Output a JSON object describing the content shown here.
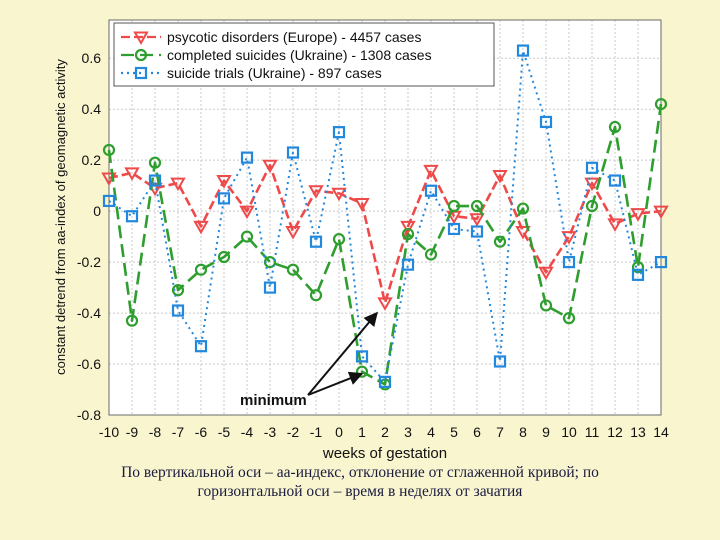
{
  "chart_data": {
    "type": "line",
    "xlabel": "weeks of gestation",
    "ylabel": "constant detrend from aa-index of geomagnetic activity",
    "x": [
      -10,
      -9,
      -8,
      -7,
      -6,
      -5,
      -4,
      -3,
      -2,
      -1,
      0,
      1,
      2,
      3,
      4,
      5,
      6,
      7,
      8,
      9,
      10,
      11,
      12,
      13,
      14
    ],
    "xlim": [
      -10,
      14
    ],
    "ylim": [
      -0.8,
      0.75
    ],
    "yticks": [
      -0.8,
      -0.6,
      -0.4,
      -0.2,
      0,
      0.2,
      0.4,
      0.6
    ],
    "grid": true,
    "legend_position": "top-left",
    "series": [
      {
        "name": "psycotic disorders (Europe) - 4457 cases",
        "color": "#ee4a4a",
        "marker": "triangle-down",
        "values": [
          0.13,
          0.15,
          0.09,
          0.11,
          -0.06,
          0.12,
          0.0,
          0.18,
          -0.08,
          0.08,
          0.07,
          0.03,
          -0.36,
          -0.06,
          0.16,
          -0.02,
          -0.03,
          0.14,
          -0.08,
          -0.24,
          -0.1,
          0.11,
          -0.05,
          -0.01,
          0.0
        ]
      },
      {
        "name": "completed suicides (Ukraine) - 1308 cases",
        "color": "#2e9e2e",
        "marker": "circle",
        "values": [
          0.24,
          -0.43,
          0.19,
          -0.31,
          -0.23,
          -0.18,
          -0.1,
          -0.2,
          -0.23,
          -0.33,
          -0.11,
          -0.63,
          -0.68,
          -0.09,
          -0.17,
          0.02,
          0.02,
          -0.12,
          0.01,
          -0.37,
          -0.42,
          0.02,
          0.33,
          -0.22,
          0.42
        ]
      },
      {
        "name": "suicide trials (Ukraine) - 897 cases",
        "color": "#2288dd",
        "marker": "square",
        "values": [
          0.04,
          -0.02,
          0.12,
          -0.39,
          -0.53,
          0.05,
          0.21,
          -0.3,
          0.23,
          -0.12,
          0.31,
          -0.57,
          -0.67,
          -0.21,
          0.08,
          -0.07,
          -0.08,
          -0.59,
          0.63,
          0.35,
          -0.2,
          0.17,
          0.12,
          -0.25,
          -0.2
        ]
      }
    ],
    "annotation": {
      "text": "minimum",
      "points_to": [
        {
          "x": 2,
          "y": -0.36
        },
        {
          "x": 1,
          "y": -0.63
        }
      ]
    }
  },
  "caption": {
    "line1": "По вертикальной оси – аа-индекс, отклонение от сглаженной кривой; по",
    "line2": "горизонтальной оси – время в неделях от зачатия"
  }
}
